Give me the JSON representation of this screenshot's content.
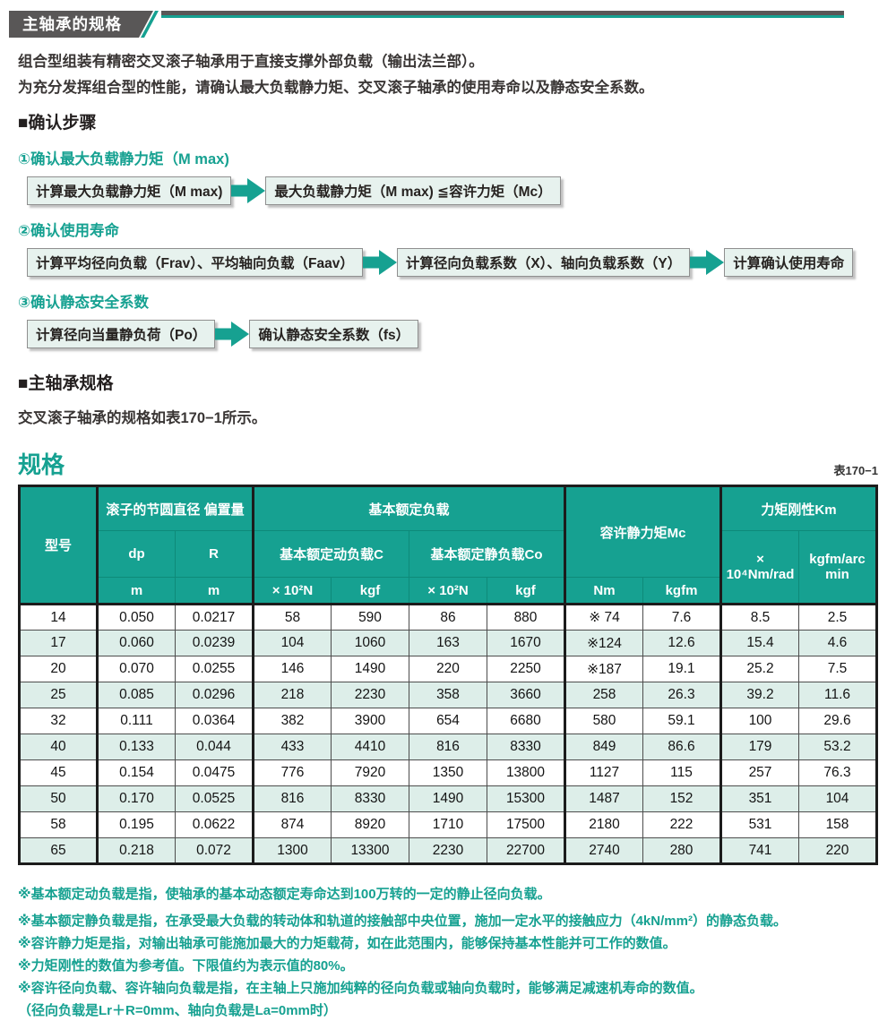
{
  "colors": {
    "teal": "#16a191",
    "tab_gray": "#595757",
    "row_alt": "#ddeee9"
  },
  "header": {
    "tab_title": "主轴承的规格"
  },
  "intro": {
    "line1": "组合型组装有精密交叉滚子轴承用于直接支撑外部负载（输出法兰部）。",
    "line2": "为充分发挥组合型的性能，请确认最大负载静力矩、交叉滚子轴承的使用寿命以及静态安全系数。"
  },
  "steps": {
    "heading": "■确认步骤",
    "items": [
      {
        "label": "①确认最大负载静力矩（M max)",
        "boxes": [
          "计算最大负载静力矩（M max)",
          "最大负载静力矩（M max) ≦容许力矩（Mc）"
        ]
      },
      {
        "label": "②确认使用寿命",
        "boxes": [
          "计算平均径向负载（Frav）、平均轴向负载（Faav）",
          "计算径向负载系数（X）、轴向负载系数（Y）",
          "计算确认使用寿命"
        ]
      },
      {
        "label": "③确认静态安全系数",
        "boxes": [
          "计算径向当量静负荷（Po）",
          "确认静态安全系数（fs）"
        ]
      }
    ]
  },
  "spec": {
    "heading": "■主轴承规格",
    "text": "交叉滚子轴承的规格如表170−1所示。",
    "table_title": "规格",
    "table_ref": "表170−1"
  },
  "table": {
    "head": {
      "model": "型号",
      "pitch_group": "滚子的节圆直径 偏置量",
      "rated_load_group": "基本额定负载",
      "dynamic_load": "基本额定动负载C",
      "static_load": "基本额定静负载Co",
      "moment_group": "容许静力矩Mc",
      "rigidity_group": "力矩刚性Km",
      "dp": "dp",
      "r": "R",
      "unit_m1": "m",
      "unit_m2": "m",
      "unit_n1": "× 10²N",
      "unit_kgf1": "kgf",
      "unit_n2": "× 10²N",
      "unit_kgf2": "kgf",
      "unit_nm": "Nm",
      "unit_kgfm": "kgfm",
      "unit_nmrad": "× 10⁴Nm/rad",
      "unit_arcmin": "kgfm/arc min"
    },
    "rows": [
      [
        "14",
        "0.050",
        "0.0217",
        "58",
        "590",
        "86",
        "880",
        "※ 74",
        "7.6",
        "8.5",
        "2.5"
      ],
      [
        "17",
        "0.060",
        "0.0239",
        "104",
        "1060",
        "163",
        "1670",
        "※124",
        "12.6",
        "15.4",
        "4.6"
      ],
      [
        "20",
        "0.070",
        "0.0255",
        "146",
        "1490",
        "220",
        "2250",
        "※187",
        "19.1",
        "25.2",
        "7.5"
      ],
      [
        "25",
        "0.085",
        "0.0296",
        "218",
        "2230",
        "358",
        "3660",
        "258",
        "26.3",
        "39.2",
        "11.6"
      ],
      [
        "32",
        "0.111",
        "0.0364",
        "382",
        "3900",
        "654",
        "6680",
        "580",
        "59.1",
        "100",
        "29.6"
      ],
      [
        "40",
        "0.133",
        "0.044",
        "433",
        "4410",
        "816",
        "8330",
        "849",
        "86.6",
        "179",
        "53.2"
      ],
      [
        "45",
        "0.154",
        "0.0475",
        "776",
        "7920",
        "1350",
        "13800",
        "1127",
        "115",
        "257",
        "76.3"
      ],
      [
        "50",
        "0.170",
        "0.0525",
        "816",
        "8330",
        "1490",
        "15300",
        "1487",
        "152",
        "351",
        "104"
      ],
      [
        "58",
        "0.195",
        "0.0622",
        "874",
        "8920",
        "1710",
        "17500",
        "2180",
        "222",
        "531",
        "158"
      ],
      [
        "65",
        "0.218",
        "0.072",
        "1300",
        "13300",
        "2230",
        "22700",
        "2740",
        "280",
        "741",
        "220"
      ]
    ]
  },
  "notes": [
    "※基本额定动负载是指，使轴承的基本动态额定寿命达到100万转的一定的静止径向负载。",
    "※基本额定静负载是指，在承受最大负载的转动体和轨道的接触部中央位置，施加一定水平的接触应力（4kN/mm²）的静态负载。",
    "※容许静力矩是指，对输出轴承可能施加最大的力矩载荷，如在此范围内，能够保持基本性能并可工作的数值。",
    "※力矩刚性的数值为参考值。下限值约为表示值的80%。",
    "※容许径向负载、容许轴向负载是指，在主轴上只施加纯粹的径向负载或轴向负载时，能够满足减速机寿命的数值。",
    "（径向负载是Lr＋R=0mm、轴向负载是La=0mm时）"
  ]
}
